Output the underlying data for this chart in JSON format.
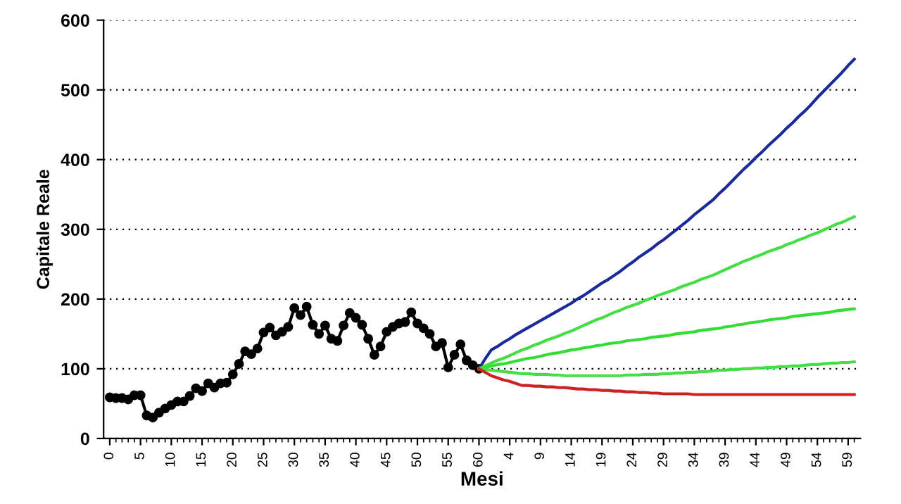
{
  "chart_data": {
    "type": "line",
    "xlabel": "Mesi",
    "ylabel": "Capitale Reale",
    "categories": [
      "0",
      null,
      null,
      null,
      null,
      "5",
      null,
      null,
      null,
      null,
      "10",
      null,
      null,
      null,
      null,
      "15",
      null,
      null,
      null,
      null,
      "20",
      null,
      null,
      null,
      null,
      "25",
      null,
      null,
      null,
      null,
      "30",
      null,
      null,
      null,
      null,
      "35",
      null,
      null,
      null,
      null,
      "40",
      null,
      null,
      null,
      null,
      "45",
      null,
      null,
      null,
      null,
      "50",
      null,
      null,
      null,
      null,
      "55",
      null,
      null,
      null,
      null,
      "60",
      null,
      null,
      null,
      null,
      "4",
      null,
      null,
      null,
      null,
      "9",
      null,
      null,
      null,
      null,
      "14",
      null,
      null,
      null,
      null,
      "19",
      null,
      null,
      null,
      null,
      "24",
      null,
      null,
      null,
      null,
      "29",
      null,
      null,
      null,
      null,
      "34",
      null,
      null,
      null,
      null,
      "39",
      null,
      null,
      null,
      null,
      "44",
      null,
      null,
      null,
      null,
      "49",
      null,
      null,
      null,
      null,
      "54",
      null,
      null,
      null,
      null,
      "59",
      null
    ],
    "ylim": [
      0,
      600
    ],
    "yticks": [
      0,
      100,
      200,
      300,
      400,
      500,
      600
    ],
    "grid": "y",
    "series": [
      {
        "color": "#000000",
        "marker": "circle",
        "values": [
          59,
          58,
          58,
          56,
          62,
          62,
          33,
          30,
          37,
          43,
          48,
          53,
          53,
          61,
          72,
          68,
          79,
          73,
          79,
          80,
          92,
          107,
          125,
          121,
          129,
          152,
          159,
          148,
          153,
          160,
          187,
          177,
          189,
          163,
          150,
          162,
          143,
          140,
          162,
          180,
          173,
          163,
          143,
          120,
          132,
          153,
          160,
          165,
          167,
          181,
          165,
          158,
          150,
          132,
          137,
          102,
          120,
          135,
          112,
          105,
          100,
          null,
          null,
          null,
          null,
          null,
          null,
          null,
          null,
          null,
          null,
          null,
          null,
          null,
          null,
          null,
          null,
          null,
          null,
          null,
          null,
          null,
          null,
          null,
          null,
          null,
          null,
          null,
          null,
          null,
          null,
          null,
          null,
          null,
          null,
          null,
          null,
          null,
          null,
          null,
          null,
          null,
          null,
          null,
          null,
          null,
          null,
          null,
          null,
          null,
          null,
          null,
          null,
          null,
          null,
          null,
          null,
          null,
          null,
          null,
          null,
          null
        ]
      },
      {
        "color": "#1a2a99",
        "values": [
          null,
          null,
          null,
          null,
          null,
          null,
          null,
          null,
          null,
          null,
          null,
          null,
          null,
          null,
          null,
          null,
          null,
          null,
          null,
          null,
          null,
          null,
          null,
          null,
          null,
          null,
          null,
          null,
          null,
          null,
          null,
          null,
          null,
          null,
          null,
          null,
          null,
          null,
          null,
          null,
          null,
          null,
          null,
          null,
          null,
          null,
          null,
          null,
          null,
          null,
          null,
          null,
          null,
          null,
          null,
          null,
          null,
          null,
          null,
          null,
          100,
          114,
          127,
          132,
          138,
          143,
          149,
          154,
          159,
          164,
          169,
          174,
          179,
          184,
          189,
          194,
          200,
          205,
          211,
          217,
          223,
          228,
          234,
          240,
          247,
          253,
          260,
          266,
          272,
          279,
          285,
          292,
          299,
          306,
          313,
          321,
          328,
          335,
          342,
          351,
          359,
          368,
          377,
          386,
          394,
          403,
          411,
          420,
          428,
          436,
          445,
          453,
          462,
          470,
          479,
          489,
          498,
          507,
          516,
          525,
          535,
          544
        ]
      },
      {
        "color": "#44dd44",
        "values": [
          null,
          null,
          null,
          null,
          null,
          null,
          null,
          null,
          null,
          null,
          null,
          null,
          null,
          null,
          null,
          null,
          null,
          null,
          null,
          null,
          null,
          null,
          null,
          null,
          null,
          null,
          null,
          null,
          null,
          null,
          null,
          null,
          null,
          null,
          null,
          null,
          null,
          null,
          null,
          null,
          null,
          null,
          null,
          null,
          null,
          null,
          null,
          null,
          null,
          null,
          null,
          null,
          null,
          null,
          null,
          null,
          null,
          null,
          null,
          null,
          100,
          104,
          108,
          112,
          115,
          119,
          123,
          127,
          130,
          134,
          137,
          141,
          144,
          147,
          151,
          154,
          158,
          162,
          166,
          170,
          173,
          177,
          181,
          184,
          188,
          191,
          194,
          198,
          201,
          205,
          208,
          211,
          214,
          218,
          221,
          224,
          228,
          231,
          234,
          238,
          242,
          246,
          250,
          254,
          257,
          261,
          264,
          268,
          271,
          274,
          278,
          281,
          285,
          288,
          292,
          295,
          299,
          303,
          307,
          310,
          314,
          318
        ]
      },
      {
        "color": "#33dd33",
        "values": [
          null,
          null,
          null,
          null,
          null,
          null,
          null,
          null,
          null,
          null,
          null,
          null,
          null,
          null,
          null,
          null,
          null,
          null,
          null,
          null,
          null,
          null,
          null,
          null,
          null,
          null,
          null,
          null,
          null,
          null,
          null,
          null,
          null,
          null,
          null,
          null,
          null,
          null,
          null,
          null,
          null,
          null,
          null,
          null,
          null,
          null,
          null,
          null,
          null,
          null,
          null,
          null,
          null,
          null,
          null,
          null,
          null,
          null,
          null,
          null,
          100,
          102,
          104,
          106,
          107,
          109,
          111,
          113,
          115,
          116,
          118,
          120,
          122,
          123,
          125,
          127,
          128,
          130,
          131,
          133,
          134,
          136,
          137,
          138,
          140,
          141,
          142,
          143,
          145,
          146,
          147,
          148,
          150,
          151,
          152,
          153,
          155,
          156,
          157,
          158,
          160,
          161,
          163,
          164,
          166,
          167,
          168,
          170,
          171,
          172,
          173,
          175,
          176,
          177,
          178,
          179,
          180,
          181,
          183,
          184,
          185,
          186
        ]
      },
      {
        "color": "#44dd44",
        "values": [
          null,
          null,
          null,
          null,
          null,
          null,
          null,
          null,
          null,
          null,
          null,
          null,
          null,
          null,
          null,
          null,
          null,
          null,
          null,
          null,
          null,
          null,
          null,
          null,
          null,
          null,
          null,
          null,
          null,
          null,
          null,
          null,
          null,
          null,
          null,
          null,
          null,
          null,
          null,
          null,
          null,
          null,
          null,
          null,
          null,
          null,
          null,
          null,
          null,
          null,
          null,
          null,
          null,
          null,
          null,
          null,
          null,
          null,
          null,
          null,
          100,
          99,
          98,
          97,
          96,
          95,
          94,
          93,
          93,
          92,
          92,
          92,
          91,
          91,
          90,
          90,
          90,
          90,
          90,
          90,
          90,
          90,
          90,
          90,
          91,
          91,
          91,
          92,
          92,
          92,
          93,
          93,
          94,
          94,
          95,
          95,
          96,
          96,
          97,
          98,
          98,
          99,
          99,
          100,
          100,
          101,
          101,
          102,
          102,
          103,
          103,
          104,
          104,
          105,
          106,
          106,
          107,
          108,
          108,
          109,
          109,
          110
        ]
      },
      {
        "color": "#cc2222",
        "values": [
          null,
          null,
          null,
          null,
          null,
          null,
          null,
          null,
          null,
          null,
          null,
          null,
          null,
          null,
          null,
          null,
          null,
          null,
          null,
          null,
          null,
          null,
          null,
          null,
          null,
          null,
          null,
          null,
          null,
          null,
          null,
          null,
          null,
          null,
          null,
          null,
          null,
          null,
          null,
          null,
          null,
          null,
          null,
          null,
          null,
          null,
          null,
          null,
          null,
          null,
          null,
          null,
          null,
          null,
          null,
          null,
          null,
          null,
          null,
          null,
          100,
          95,
          90,
          87,
          84,
          82,
          79,
          76,
          76,
          75,
          75,
          74,
          74,
          73,
          73,
          72,
          71,
          71,
          70,
          70,
          69,
          69,
          68,
          68,
          67,
          67,
          66,
          66,
          65,
          65,
          64,
          64,
          64,
          64,
          64,
          63,
          63,
          63,
          63,
          63,
          63,
          63,
          63,
          63,
          63,
          63,
          63,
          63,
          63,
          63,
          63,
          63,
          63,
          63,
          63,
          63,
          63,
          63,
          63,
          63,
          63,
          63
        ]
      }
    ]
  }
}
